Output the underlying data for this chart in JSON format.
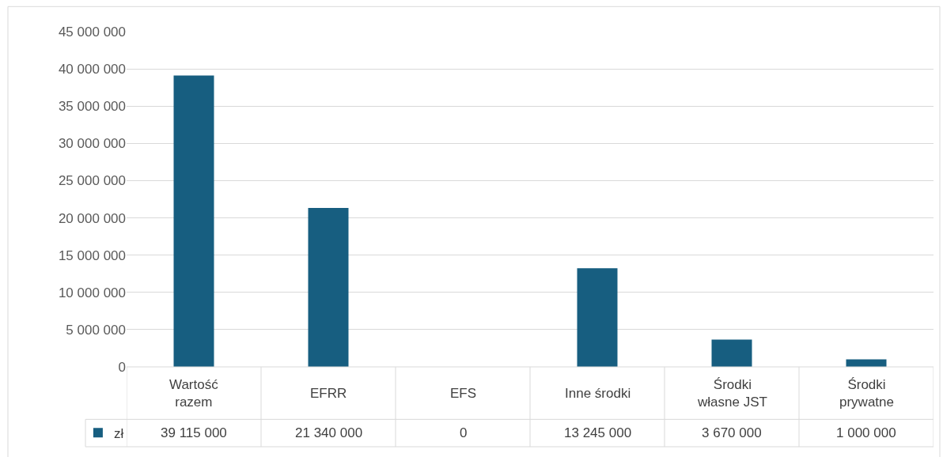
{
  "chart_data": {
    "type": "bar",
    "categories": [
      "Wartość razem",
      "EFRR",
      "EFS",
      "Inne środki",
      "Środki własne JST",
      "Środki prywatne"
    ],
    "series": [
      {
        "name": "zł",
        "color": "#175e80",
        "values": [
          39115000,
          21340000,
          0,
          13245000,
          3670000,
          1000000
        ],
        "value_labels": [
          "39 115 000",
          "21 340 000",
          "0",
          "13 245 000",
          "3 670 000",
          "1 000 000"
        ]
      }
    ],
    "ylim": [
      0,
      45000000
    ],
    "yticks": [
      {
        "value": 0,
        "label": "0"
      },
      {
        "value": 5000000,
        "label": "5 000 000"
      },
      {
        "value": 10000000,
        "label": "10 000 000"
      },
      {
        "value": 15000000,
        "label": "15 000 000"
      },
      {
        "value": 20000000,
        "label": "20 000 000"
      },
      {
        "value": 25000000,
        "label": "25 000 000"
      },
      {
        "value": 30000000,
        "label": "30 000 000"
      },
      {
        "value": 35000000,
        "label": "35 000 000"
      },
      {
        "value": 40000000,
        "label": "40 000 000"
      },
      {
        "value": 45000000,
        "label": "45 000 000"
      }
    ],
    "grid": "y",
    "legend": "bottom left"
  }
}
